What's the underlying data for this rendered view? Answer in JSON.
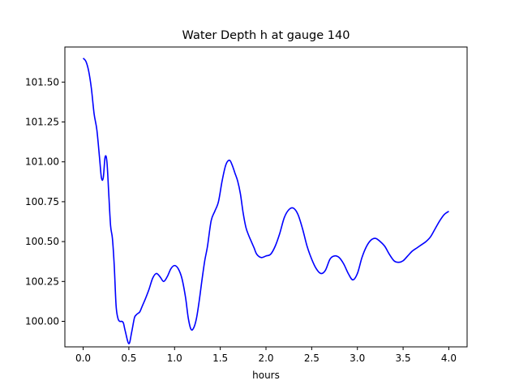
{
  "chart_data": {
    "type": "line",
    "title": "Water Depth h at gauge 140",
    "xlabel": "hours",
    "ylabel": "",
    "xlim": [
      -0.2,
      4.2
    ],
    "ylim": [
      99.84,
      101.72
    ],
    "xticks": [
      0.0,
      0.5,
      1.0,
      1.5,
      2.0,
      2.5,
      3.0,
      3.5,
      4.0
    ],
    "xtick_labels": [
      "0.0",
      "0.5",
      "1.0",
      "1.5",
      "2.0",
      "2.5",
      "3.0",
      "3.5",
      "4.0"
    ],
    "yticks": [
      100.0,
      100.25,
      100.5,
      100.75,
      101.0,
      101.25,
      101.5
    ],
    "ytick_labels": [
      "100.00",
      "100.25",
      "100.50",
      "100.75",
      "101.00",
      "101.25",
      "101.50"
    ],
    "grid": false,
    "legend": null,
    "series": [
      {
        "color": "#0000ff",
        "x": [
          0.0,
          0.03,
          0.06,
          0.09,
          0.12,
          0.15,
          0.18,
          0.2,
          0.22,
          0.24,
          0.26,
          0.28,
          0.3,
          0.32,
          0.34,
          0.36,
          0.38,
          0.4,
          0.42,
          0.44,
          0.46,
          0.5,
          0.53,
          0.56,
          0.58,
          0.6,
          0.62,
          0.65,
          0.68,
          0.72,
          0.76,
          0.8,
          0.84,
          0.88,
          0.92,
          0.96,
          1.0,
          1.04,
          1.08,
          1.12,
          1.15,
          1.18,
          1.21,
          1.24,
          1.27,
          1.3,
          1.33,
          1.36,
          1.4,
          1.44,
          1.48,
          1.52,
          1.56,
          1.6,
          1.63,
          1.66,
          1.69,
          1.72,
          1.75,
          1.78,
          1.81,
          1.84,
          1.87,
          1.9,
          1.95,
          2.0,
          2.05,
          2.1,
          2.15,
          2.2,
          2.25,
          2.3,
          2.35,
          2.4,
          2.45,
          2.5,
          2.55,
          2.6,
          2.65,
          2.7,
          2.75,
          2.8,
          2.85,
          2.9,
          2.95,
          3.0,
          3.05,
          3.1,
          3.15,
          3.2,
          3.25,
          3.3,
          3.35,
          3.4,
          3.45,
          3.5,
          3.55,
          3.6,
          3.65,
          3.7,
          3.75,
          3.8,
          3.85,
          3.9,
          3.95,
          4.0
        ],
        "y": [
          101.65,
          101.63,
          101.57,
          101.46,
          101.3,
          101.2,
          101.02,
          100.9,
          100.9,
          101.03,
          101.0,
          100.8,
          100.6,
          100.52,
          100.35,
          100.1,
          100.02,
          100.0,
          100.0,
          99.99,
          99.94,
          99.86,
          99.93,
          100.02,
          100.04,
          100.05,
          100.06,
          100.1,
          100.14,
          100.2,
          100.27,
          100.3,
          100.28,
          100.25,
          100.28,
          100.33,
          100.35,
          100.33,
          100.27,
          100.15,
          100.02,
          99.95,
          99.96,
          100.02,
          100.13,
          100.26,
          100.38,
          100.47,
          100.63,
          100.69,
          100.75,
          100.88,
          100.98,
          101.01,
          100.98,
          100.93,
          100.88,
          100.8,
          100.68,
          100.59,
          100.54,
          100.5,
          100.46,
          100.42,
          100.4,
          100.41,
          100.42,
          100.47,
          100.55,
          100.65,
          100.7,
          100.71,
          100.67,
          100.58,
          100.47,
          100.39,
          100.33,
          100.3,
          100.32,
          100.39,
          100.41,
          100.4,
          100.36,
          100.3,
          100.26,
          100.3,
          100.4,
          100.47,
          100.51,
          100.52,
          100.5,
          100.47,
          100.42,
          100.38,
          100.37,
          100.38,
          100.41,
          100.44,
          100.46,
          100.48,
          100.5,
          100.53,
          100.58,
          100.63,
          100.67,
          100.69
        ]
      }
    ]
  }
}
